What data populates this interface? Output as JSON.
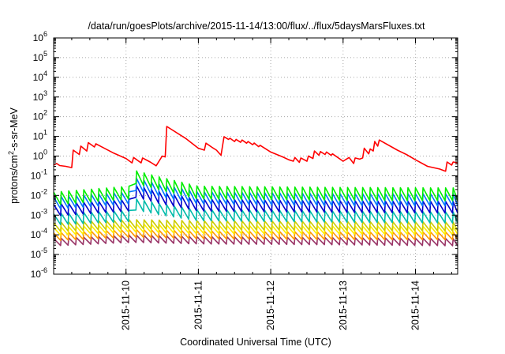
{
  "chart_data": {
    "type": "line",
    "title": "/data/run/goesPlots/archive/2015-11-14/13:00/flux/../flux/5daysMarsFluxes.txt",
    "xlabel": "Coordinated Universal Time (UTC)",
    "ylabel_parts": {
      "prefix": "protons/cm",
      "sup": "2",
      "suffix": "-s-sr-MeV"
    },
    "y_scale": "log",
    "ylim": [
      -6,
      6
    ],
    "y_ticks": [
      {
        "base": "10",
        "exp": "-6",
        "v": -6
      },
      {
        "base": "10",
        "exp": "-5",
        "v": -5
      },
      {
        "base": "10",
        "exp": "-4",
        "v": -4
      },
      {
        "base": "10",
        "exp": "-3",
        "v": -3
      },
      {
        "base": "10",
        "exp": "-2",
        "v": -2
      },
      {
        "base": "10",
        "exp": "-1",
        "v": -1
      },
      {
        "base": "10",
        "exp": "0",
        "v": 0
      },
      {
        "base": "10",
        "exp": "1",
        "v": 1
      },
      {
        "base": "10",
        "exp": "2",
        "v": 2
      },
      {
        "base": "10",
        "exp": "3",
        "v": 3
      },
      {
        "base": "10",
        "exp": "4",
        "v": 4
      },
      {
        "base": "10",
        "exp": "5",
        "v": 5
      },
      {
        "base": "10",
        "exp": "6",
        "v": 6
      }
    ],
    "xlim": [
      "2015-11-09T00:00",
      "2015-11-14T14:00"
    ],
    "x_ticks": [
      {
        "label": "2015-11-10",
        "t": "2015-11-10T00:00"
      },
      {
        "label": "2015-11-11",
        "t": "2015-11-11T00:00"
      },
      {
        "label": "2015-11-12",
        "t": "2015-11-12T00:00"
      },
      {
        "label": "2015-11-13",
        "t": "2015-11-13T00:00"
      },
      {
        "label": "2015-11-14",
        "t": "2015-11-14T00:00"
      }
    ],
    "grid": true,
    "series": [
      {
        "color": "#ff0000",
        "width": 1.6,
        "points": [
          [
            "2015-11-09T00:00",
            0.35
          ],
          [
            "2015-11-09T01:00",
            0.42
          ],
          [
            "2015-11-09T02:00",
            0.33
          ],
          [
            "2015-11-09T04:00",
            0.3
          ],
          [
            "2015-11-09T06:00",
            0.26
          ],
          [
            "2015-11-09T06:30",
            2.0
          ],
          [
            "2015-11-09T08:30",
            1.2
          ],
          [
            "2015-11-09T09:00",
            3.2
          ],
          [
            "2015-11-09T11:00",
            1.8
          ],
          [
            "2015-11-09T11:30",
            4.8
          ],
          [
            "2015-11-09T13:30",
            2.9
          ],
          [
            "2015-11-09T14:00",
            4.2
          ],
          [
            "2015-11-09T20:00",
            1.4
          ],
          [
            "2015-11-10T00:00",
            0.75
          ],
          [
            "2015-11-10T02:00",
            0.45
          ],
          [
            "2015-11-10T02:30",
            0.85
          ],
          [
            "2015-11-10T05:00",
            0.45
          ],
          [
            "2015-11-10T05:30",
            0.8
          ],
          [
            "2015-11-10T07:30",
            0.55
          ],
          [
            "2015-11-10T08:00",
            0.5
          ],
          [
            "2015-11-10T10:00",
            0.32
          ],
          [
            "2015-11-10T12:00",
            1.0
          ],
          [
            "2015-11-10T13:00",
            0.9
          ],
          [
            "2015-11-10T13:30",
            32
          ],
          [
            "2015-11-10T20:00",
            7.5
          ],
          [
            "2015-11-11T00:00",
            2.5
          ],
          [
            "2015-11-11T02:00",
            2.0
          ],
          [
            "2015-11-11T02:30",
            4.5
          ],
          [
            "2015-11-11T04:30",
            2.8
          ],
          [
            "2015-11-11T06:00",
            2.0
          ],
          [
            "2015-11-11T07:30",
            1.1
          ],
          [
            "2015-11-11T08:30",
            9.5
          ],
          [
            "2015-11-11T10:00",
            7.0
          ],
          [
            "2015-11-11T10:30",
            8.0
          ],
          [
            "2015-11-11T12:00",
            5.5
          ],
          [
            "2015-11-11T12:30",
            7.0
          ],
          [
            "2015-11-11T14:00",
            5.0
          ],
          [
            "2015-11-11T14:30",
            6.5
          ],
          [
            "2015-11-11T16:00",
            4.5
          ],
          [
            "2015-11-11T16:30",
            5.5
          ],
          [
            "2015-11-11T18:00",
            3.8
          ],
          [
            "2015-11-11T18:30",
            4.6
          ],
          [
            "2015-11-11T20:00",
            3.0
          ],
          [
            "2015-11-11T20:30",
            3.5
          ],
          [
            "2015-11-12T00:00",
            1.6
          ],
          [
            "2015-11-12T04:00",
            0.9
          ],
          [
            "2015-11-12T06:00",
            0.65
          ],
          [
            "2015-11-12T07:30",
            0.55
          ],
          [
            "2015-11-12T08:00",
            0.85
          ],
          [
            "2015-11-12T09:30",
            0.48
          ],
          [
            "2015-11-12T10:00",
            0.8
          ],
          [
            "2015-11-12T12:00",
            0.55
          ],
          [
            "2015-11-12T12:30",
            1.0
          ],
          [
            "2015-11-12T14:00",
            0.75
          ],
          [
            "2015-11-12T14:30",
            1.8
          ],
          [
            "2015-11-12T16:00",
            1.1
          ],
          [
            "2015-11-12T16:30",
            1.7
          ],
          [
            "2015-11-12T18:00",
            1.2
          ],
          [
            "2015-11-12T18:30",
            1.6
          ],
          [
            "2015-11-12T20:00",
            1.1
          ],
          [
            "2015-11-12T20:30",
            1.3
          ],
          [
            "2015-11-13T00:00",
            0.55
          ],
          [
            "2015-11-13T02:00",
            0.85
          ],
          [
            "2015-11-13T03:30",
            0.42
          ],
          [
            "2015-11-13T04:00",
            0.8
          ],
          [
            "2015-11-13T05:30",
            0.7
          ],
          [
            "2015-11-13T06:30",
            0.8
          ],
          [
            "2015-11-13T07:00",
            2.5
          ],
          [
            "2015-11-13T08:30",
            1.3
          ],
          [
            "2015-11-13T09:00",
            2.3
          ],
          [
            "2015-11-13T10:00",
            1.8
          ],
          [
            "2015-11-13T10:30",
            5.5
          ],
          [
            "2015-11-13T11:30",
            3.2
          ],
          [
            "2015-11-13T12:00",
            6.5
          ],
          [
            "2015-11-13T18:00",
            2.0
          ],
          [
            "2015-11-13T21:00",
            1.2
          ],
          [
            "2015-11-14T00:00",
            0.65
          ],
          [
            "2015-11-14T04:00",
            0.3
          ],
          [
            "2015-11-14T08:00",
            0.22
          ],
          [
            "2015-11-14T10:00",
            0.17
          ],
          [
            "2015-11-14T10:30",
            0.5
          ],
          [
            "2015-11-14T12:00",
            0.35
          ],
          [
            "2015-11-14T12:30",
            0.5
          ],
          [
            "2015-11-14T14:00",
            0.45
          ]
        ]
      },
      {
        "color": "#00ee00",
        "width": 1.6,
        "sawtooth": {
          "start": "2015-11-09T00:00",
          "period_hours": 2.5,
          "dip_frac": 0.65,
          "peak_jump": 1.8
        },
        "envelope": [
          [
            "2015-11-09T00:00",
            0.011
          ],
          [
            "2015-11-10T01:00",
            0.022
          ],
          [
            "2015-11-10T02:00",
            0.15
          ],
          [
            "2015-11-10T12:00",
            0.06
          ],
          [
            "2015-11-11T00:00",
            0.022
          ],
          [
            "2015-11-13T00:00",
            0.019
          ],
          [
            "2015-11-14T14:00",
            0.018
          ]
        ]
      },
      {
        "color": "#0077ff",
        "width": 1.6,
        "sawtooth": {
          "start": "2015-11-09T00:00",
          "period_hours": 2.5,
          "dip_frac": 0.6,
          "peak_jump": 1.9
        },
        "envelope": [
          [
            "2015-11-09T00:00",
            0.006
          ],
          [
            "2015-11-10T01:00",
            0.011
          ],
          [
            "2015-11-10T02:00",
            0.06
          ],
          [
            "2015-11-10T12:00",
            0.025
          ],
          [
            "2015-11-11T00:00",
            0.011
          ],
          [
            "2015-11-13T00:00",
            0.009
          ],
          [
            "2015-11-14T14:00",
            0.009
          ]
        ]
      },
      {
        "color": "#0000cc",
        "width": 1.6,
        "sawtooth": {
          "start": "2015-11-09T00:00",
          "period_hours": 2.5,
          "dip_frac": 0.55,
          "peak_jump": 2.0
        },
        "envelope": [
          [
            "2015-11-09T00:00",
            0.0025
          ],
          [
            "2015-11-10T01:00",
            0.0045
          ],
          [
            "2015-11-10T02:00",
            0.025
          ],
          [
            "2015-11-10T12:00",
            0.01
          ],
          [
            "2015-11-11T00:00",
            0.0045
          ],
          [
            "2015-11-13T00:00",
            0.0038
          ],
          [
            "2015-11-14T14:00",
            0.0035
          ]
        ]
      },
      {
        "color": "#00bbaa",
        "width": 1.6,
        "sawtooth": {
          "start": "2015-11-09T00:00",
          "period_hours": 2.5,
          "dip_frac": 0.5,
          "peak_jump": 2.1
        },
        "envelope": [
          [
            "2015-11-09T00:00",
            0.0008
          ],
          [
            "2015-11-10T01:00",
            0.0012
          ],
          [
            "2015-11-10T02:00",
            0.005
          ],
          [
            "2015-11-10T12:00",
            0.0025
          ],
          [
            "2015-11-11T00:00",
            0.0013
          ],
          [
            "2015-11-13T00:00",
            0.0011
          ],
          [
            "2015-11-14T14:00",
            0.001
          ]
        ]
      },
      {
        "color": "#cccc00",
        "width": 1.6,
        "sawtooth": {
          "start": "2015-11-09T00:00",
          "period_hours": 2.5,
          "dip_frac": 0.35,
          "peak_jump": 2.2
        },
        "envelope": [
          [
            "2015-11-09T00:00",
            0.00028
          ],
          [
            "2015-11-10T02:00",
            0.0004
          ],
          [
            "2015-11-11T00:00",
            0.00035
          ],
          [
            "2015-11-13T00:00",
            0.00032
          ],
          [
            "2015-11-14T14:00",
            0.0003
          ]
        ]
      },
      {
        "color": "#ffee00",
        "width": 1.6,
        "sawtooth": {
          "start": "2015-11-09T00:00",
          "period_hours": 2.5,
          "dip_frac": 0.3,
          "peak_jump": 2.2
        },
        "envelope": [
          [
            "2015-11-09T00:00",
            0.00016
          ],
          [
            "2015-11-10T02:00",
            0.00024
          ],
          [
            "2015-11-11T00:00",
            0.0002
          ],
          [
            "2015-11-13T00:00",
            0.00019
          ],
          [
            "2015-11-14T14:00",
            0.00018
          ]
        ]
      },
      {
        "color": "#ff9900",
        "width": 1.6,
        "sawtooth": {
          "start": "2015-11-09T00:00",
          "period_hours": 2.5,
          "dip_frac": 0.25,
          "peak_jump": 2.4
        },
        "envelope": [
          [
            "2015-11-09T00:00",
            8e-05
          ],
          [
            "2015-11-10T02:00",
            0.00012
          ],
          [
            "2015-11-11T00:00",
            0.0001
          ],
          [
            "2015-11-13T00:00",
            9e-05
          ],
          [
            "2015-11-14T14:00",
            9e-05
          ]
        ]
      },
      {
        "color": "#993366",
        "width": 1.6,
        "sawtooth": {
          "start": "2015-11-09T00:00",
          "period_hours": 2.5,
          "dip_frac": 0.2,
          "peak_jump": 2.6
        },
        "envelope": [
          [
            "2015-11-09T00:00",
            4e-05
          ],
          [
            "2015-11-10T02:00",
            6e-05
          ],
          [
            "2015-11-11T00:00",
            5e-05
          ],
          [
            "2015-11-13T00:00",
            4.5e-05
          ],
          [
            "2015-11-14T14:00",
            4e-05
          ]
        ]
      }
    ]
  }
}
